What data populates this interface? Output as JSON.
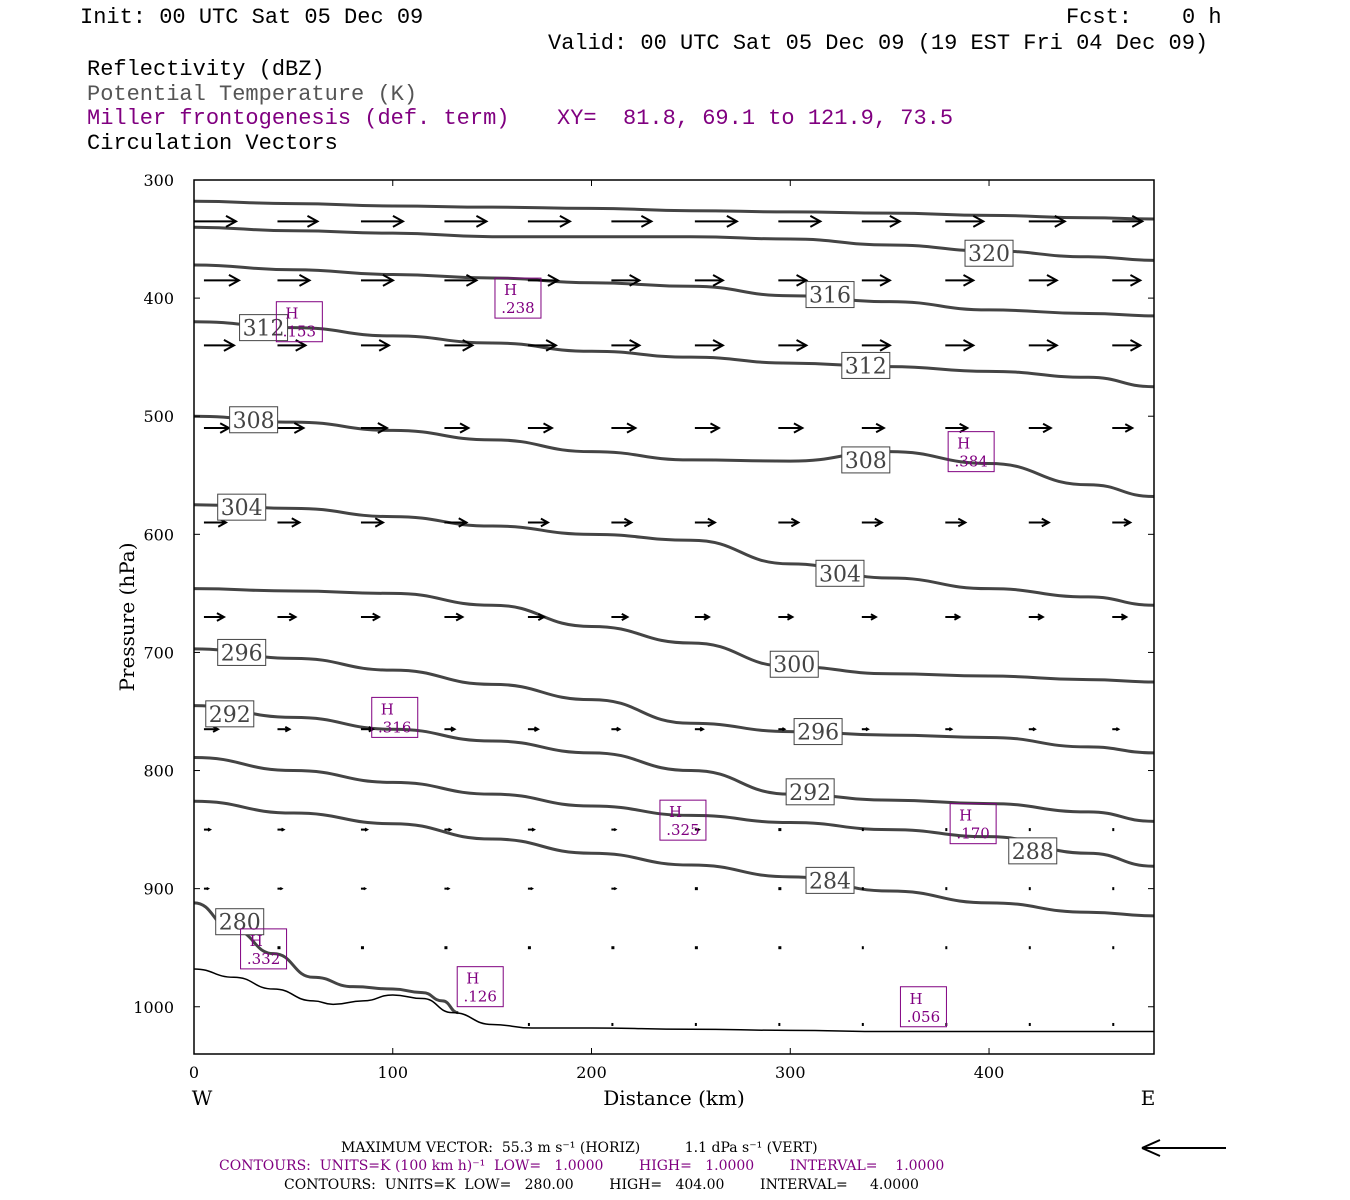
{
  "header": {
    "init": "Init: 00 UTC Sat 05 Dec 09",
    "fcst_label": "Fcst:",
    "fcst_value": "0 h",
    "valid": "Valid: 00 UTC Sat 05 Dec 09 (19 EST Fri 04 Dec 09)",
    "field1": "Reflectivity (dBZ)",
    "field2": "Potential Temperature (K)",
    "field3": "Miller frontogenesis (def. term)",
    "xy": "XY=  81.8, 69.1 to 121.9, 73.5",
    "field4": "Circulation Vectors"
  },
  "footer": {
    "max_vector": "MAXIMUM VECTOR:  55.3 m s⁻¹ (HORIZ)          1.1 dPa s⁻¹ (VERT)",
    "contours_purple": "CONTOURS:  UNITS=K (100 km h)⁻¹  LOW=   1.0000        HIGH=   1.0000        INTERVAL=    1.0000",
    "contours_black": "CONTOURS:  UNITS=K  LOW=   280.00        HIGH=   404.00        INTERVAL=     4.0000"
  },
  "colors": {
    "theta": "#444444",
    "frontogenesis": "#800080",
    "vectors": "#000000"
  },
  "chart_data": {
    "type": "line",
    "xlabel": "Distance (km)",
    "ylabel": "Pressure (hPa)",
    "xlim": [
      0,
      483
    ],
    "ylim": [
      1040,
      300
    ],
    "x_ticks": [
      0,
      100,
      200,
      300,
      400
    ],
    "y_ticks": [
      300,
      400,
      500,
      600,
      700,
      800,
      900,
      1000
    ],
    "x_end_labels": {
      "left": "W",
      "right": "E"
    },
    "theta_contours": [
      {
        "name": "280",
        "x": [
          0,
          20,
          40,
          60,
          80,
          100,
          115,
          125,
          133
        ],
        "y": [
          912,
          935,
          955,
          975,
          983,
          985,
          988,
          995,
          1005
        ]
      },
      {
        "name": "284",
        "x": [
          0,
          50,
          100,
          150,
          200,
          250,
          300,
          350,
          400,
          450,
          483
        ],
        "y": [
          826,
          836,
          845,
          858,
          870,
          880,
          890,
          902,
          912,
          920,
          923
        ]
      },
      {
        "name": "288",
        "x": [
          0,
          50,
          100,
          150,
          200,
          250,
          300,
          350,
          400,
          450,
          483
        ],
        "y": [
          789,
          800,
          810,
          820,
          830,
          838,
          844,
          850,
          856,
          870,
          881
        ]
      },
      {
        "name": "292",
        "x": [
          0,
          50,
          100,
          150,
          200,
          250,
          300,
          350,
          400,
          450,
          483
        ],
        "y": [
          745,
          755,
          765,
          775,
          785,
          800,
          820,
          825,
          828,
          835,
          843
        ]
      },
      {
        "name": "296",
        "x": [
          0,
          50,
          100,
          150,
          200,
          250,
          300,
          350,
          400,
          450,
          483
        ],
        "y": [
          697,
          705,
          715,
          727,
          740,
          760,
          767,
          770,
          772,
          780,
          785
        ]
      },
      {
        "name": "300",
        "x": [
          0,
          50,
          100,
          150,
          200,
          250,
          300,
          350,
          400,
          450,
          483
        ],
        "y": [
          646,
          648,
          650,
          660,
          678,
          692,
          712,
          718,
          720,
          723,
          725
        ]
      },
      {
        "name": "304",
        "x": [
          0,
          50,
          100,
          150,
          200,
          250,
          300,
          350,
          400,
          450,
          483
        ],
        "y": [
          575,
          578,
          585,
          593,
          600,
          605,
          625,
          637,
          646,
          653,
          660
        ]
      },
      {
        "name": "308",
        "x": [
          0,
          50,
          100,
          150,
          200,
          250,
          300,
          350,
          400,
          450,
          483
        ],
        "y": [
          500,
          505,
          512,
          520,
          530,
          537,
          538,
          530,
          540,
          558,
          568
        ]
      },
      {
        "name": "312",
        "x": [
          0,
          50,
          100,
          150,
          200,
          250,
          300,
          350,
          400,
          450,
          483
        ],
        "y": [
          420,
          425,
          432,
          438,
          445,
          450,
          455,
          458,
          462,
          467,
          475
        ]
      },
      {
        "name": "316",
        "x": [
          0,
          50,
          100,
          150,
          200,
          250,
          300,
          350,
          400,
          450,
          483
        ],
        "y": [
          372,
          376,
          380,
          383,
          387,
          390,
          398,
          403,
          410,
          413,
          415
        ]
      },
      {
        "name": "320",
        "x": [
          0,
          50,
          100,
          150,
          200,
          250,
          300,
          350,
          400,
          450,
          483
        ],
        "y": [
          340,
          343,
          345,
          348,
          348,
          348,
          350,
          355,
          360,
          365,
          368
        ]
      },
      {
        "name": "324",
        "x": [
          0,
          50,
          100,
          150,
          200,
          250,
          300,
          350,
          400,
          450,
          483
        ],
        "y": [
          318,
          320,
          322,
          323,
          324,
          326,
          327,
          328,
          330,
          332,
          333
        ]
      }
    ],
    "theta_labels": [
      {
        "text": "320",
        "x": 400,
        "y": 362
      },
      {
        "text": "316",
        "x": 320,
        "y": 397
      },
      {
        "text": "312",
        "x": 35,
        "y": 425
      },
      {
        "text": "312",
        "x": 338,
        "y": 457
      },
      {
        "text": "308",
        "x": 30,
        "y": 503
      },
      {
        "text": "308",
        "x": 338,
        "y": 537
      },
      {
        "text": "304",
        "x": 24,
        "y": 577
      },
      {
        "text": "304",
        "x": 325,
        "y": 633
      },
      {
        "text": "296",
        "x": 24,
        "y": 700
      },
      {
        "text": "300",
        "x": 302,
        "y": 710
      },
      {
        "text": "292",
        "x": 18,
        "y": 752
      },
      {
        "text": "296",
        "x": 314,
        "y": 767
      },
      {
        "text": "292",
        "x": 310,
        "y": 818
      },
      {
        "text": "288",
        "x": 422,
        "y": 868
      },
      {
        "text": "284",
        "x": 320,
        "y": 893
      },
      {
        "text": "280",
        "x": 23,
        "y": 928
      }
    ],
    "frontogenesis_maxima": [
      {
        "label": "H",
        "value": ".238",
        "x": 163,
        "y": 400
      },
      {
        "label": "H",
        "value": ".153",
        "x": 53,
        "y": 420
      },
      {
        "label": "H",
        "value": ".384",
        "x": 391,
        "y": 530
      },
      {
        "label": "H",
        "value": ".316",
        "x": 101,
        "y": 755
      },
      {
        "label": "H",
        "value": ".325",
        "x": 246,
        "y": 842
      },
      {
        "label": "H",
        "value": ".170",
        "x": 392,
        "y": 845
      },
      {
        "label": "H",
        "value": ".332",
        "x": 35,
        "y": 951
      },
      {
        "label": "H",
        "value": ".126",
        "x": 144,
        "y": 983
      },
      {
        "label": "H",
        "value": ".056",
        "x": 367,
        "y": 1000
      }
    ],
    "surface_line": {
      "x": [
        0,
        20,
        40,
        60,
        70,
        85,
        100,
        115,
        130,
        150,
        170,
        200,
        250,
        300,
        350,
        400,
        450,
        483
      ],
      "y": [
        968,
        975,
        985,
        995,
        998,
        995,
        990,
        993,
        1005,
        1015,
        1018,
        1018,
        1019,
        1020,
        1021,
        1021,
        1021,
        1021
      ]
    },
    "vector_rows": [
      {
        "p": 335,
        "x": [
          0,
          42,
          84,
          126,
          168,
          210,
          252,
          294,
          336,
          378,
          420,
          462
        ],
        "len": [
          42,
          40,
          42,
          42,
          42,
          40,
          42,
          42,
          38,
          38,
          36,
          30
        ]
      },
      {
        "p": 385,
        "x": [
          5,
          42,
          84,
          126,
          168,
          210,
          252,
          294,
          336,
          378,
          420,
          462
        ],
        "len": [
          35,
          32,
          32,
          32,
          30,
          28,
          28,
          28,
          28,
          28,
          28,
          28
        ]
      },
      {
        "p": 440,
        "x": [
          5,
          42,
          84,
          126,
          168,
          210,
          252,
          294,
          336,
          378,
          420,
          462
        ],
        "len": [
          30,
          28,
          28,
          28,
          28,
          28,
          28,
          28,
          28,
          28,
          28,
          28
        ]
      },
      {
        "p": 510,
        "x": [
          5,
          42,
          84,
          126,
          168,
          210,
          252,
          294,
          336,
          378,
          420,
          462
        ],
        "len": [
          25,
          26,
          26,
          24,
          24,
          24,
          24,
          24,
          22,
          22,
          22,
          20
        ]
      },
      {
        "p": 590,
        "x": [
          5,
          42,
          84,
          126,
          168,
          210,
          252,
          294,
          336,
          378,
          420,
          462
        ],
        "len": [
          22,
          22,
          22,
          22,
          20,
          20,
          20,
          20,
          20,
          20,
          20,
          18
        ]
      },
      {
        "p": 670,
        "x": [
          5,
          42,
          84,
          126,
          168,
          210,
          252,
          294,
          336,
          378,
          420,
          462
        ],
        "len": [
          20,
          18,
          18,
          18,
          16,
          16,
          14,
          14,
          14,
          14,
          14,
          14
        ]
      },
      {
        "p": 765,
        "x": [
          5,
          42,
          84,
          126,
          168,
          210,
          252,
          294,
          336,
          378,
          420,
          462
        ],
        "len": [
          14,
          12,
          12,
          10,
          10,
          8,
          8,
          6,
          6,
          6,
          6,
          6
        ]
      },
      {
        "p": 850,
        "x": [
          5,
          42,
          84,
          126,
          168,
          210,
          252,
          294,
          336,
          378,
          420,
          462
        ],
        "len": [
          6,
          6,
          6,
          6,
          6,
          4,
          4,
          3,
          2,
          2,
          2,
          2
        ]
      },
      {
        "p": 900,
        "x": [
          5,
          42,
          84,
          126,
          168,
          210,
          252,
          294,
          336,
          378,
          420,
          462
        ],
        "len": [
          4,
          4,
          4,
          4,
          4,
          4,
          3,
          3,
          2,
          2,
          2,
          2
        ]
      },
      {
        "p": 950,
        "x": [
          42,
          84,
          126,
          168,
          210,
          252,
          294,
          336,
          378,
          420,
          462
        ],
        "len": [
          3,
          3,
          3,
          3,
          3,
          3,
          3,
          2,
          2,
          2,
          2
        ]
      },
      {
        "p": 1015,
        "x": [
          168,
          210,
          252,
          294,
          336,
          378,
          420,
          462
        ],
        "len": [
          2,
          2,
          2,
          2,
          2,
          2,
          2,
          2
        ]
      }
    ]
  }
}
